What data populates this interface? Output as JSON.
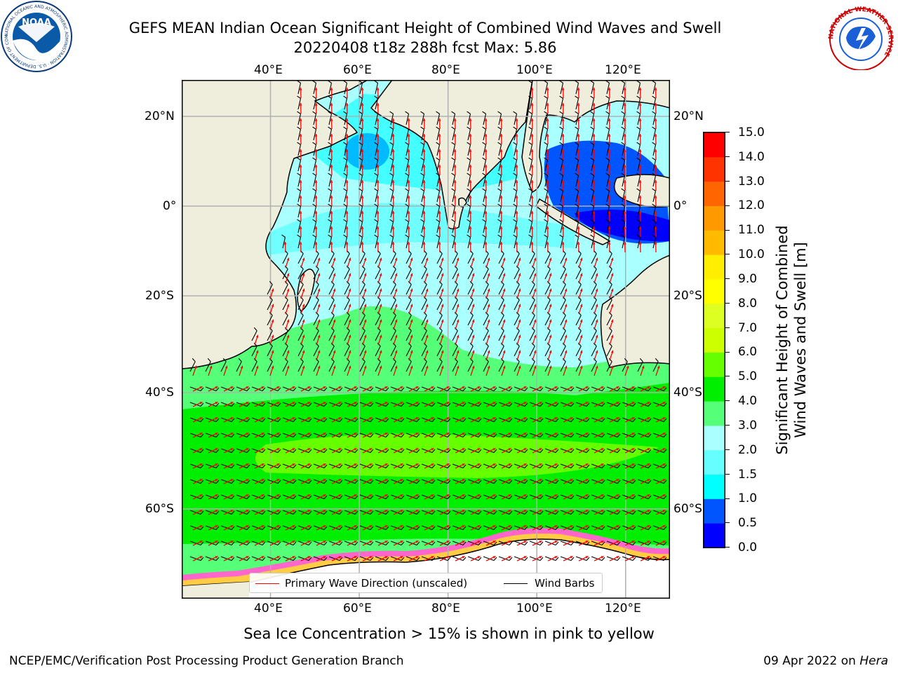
{
  "title": {
    "line1": "GEFS MEAN Indian Ocean Significant Height of Combined Wind Waves and Swell",
    "line2": "20220408 t18z 288h fcst   Max: 5.86"
  },
  "map": {
    "lon_labels": [
      "40°E",
      "60°E",
      "80°E",
      "100°E",
      "120°E"
    ],
    "lat_labels": [
      "20°N",
      "0°",
      "20°S",
      "40°S",
      "60°S"
    ],
    "lon_range": [
      20,
      130
    ],
    "lat_range": [
      -73,
      28
    ],
    "colors": {
      "land": "#efeddc",
      "ice_region": "#ffffff",
      "ice_edge": [
        "#ff66cc",
        "#ffcc44",
        "#ff8844"
      ],
      "wave_direction": "#ff0000",
      "wind_barb": "#000000",
      "gridline": "#b0b0b0"
    }
  },
  "legend": {
    "wave_direction_label": "Primary Wave Direction (unscaled)",
    "wind_barbs_label": "Wind Barbs"
  },
  "colorbar": {
    "label_line1": "Significant Height of Combined",
    "label_line2": "Wind Waves and Swell [m]",
    "levels": [
      {
        "from": 0.0,
        "to": 0.5,
        "color": "#0000ff"
      },
      {
        "from": 0.5,
        "to": 1.0,
        "color": "#0055ff"
      },
      {
        "from": 1.0,
        "to": 1.5,
        "color": "#00ffff"
      },
      {
        "from": 1.5,
        "to": 2.0,
        "color": "#66ffff"
      },
      {
        "from": 2.0,
        "to": 3.0,
        "color": "#aaffff"
      },
      {
        "from": 3.0,
        "to": 4.0,
        "color": "#55ff77"
      },
      {
        "from": 4.0,
        "to": 5.0,
        "color": "#00ee00"
      },
      {
        "from": 5.0,
        "to": 6.0,
        "color": "#66ff00"
      },
      {
        "from": 6.0,
        "to": 7.0,
        "color": "#ccff00"
      },
      {
        "from": 7.0,
        "to": 8.0,
        "color": "#ddff22"
      },
      {
        "from": 8.0,
        "to": 9.0,
        "color": "#ffff00"
      },
      {
        "from": 9.0,
        "to": 10.0,
        "color": "#ffee00"
      },
      {
        "from": 10.0,
        "to": 11.0,
        "color": "#ffbb00"
      },
      {
        "from": 11.0,
        "to": 12.0,
        "color": "#ff9900"
      },
      {
        "from": 12.0,
        "to": 13.0,
        "color": "#ff6600"
      },
      {
        "from": 13.0,
        "to": 14.0,
        "color": "#ff3300"
      },
      {
        "from": 14.0,
        "to": 15.0,
        "color": "#ff0000"
      }
    ],
    "tick_labels": [
      "0.0",
      "0.5",
      "1.0",
      "1.5",
      "2.0",
      "3.0",
      "4.0",
      "5.0",
      "6.0",
      "7.0",
      "8.0",
      "9.0",
      "10.0",
      "11.0",
      "12.0",
      "13.0",
      "14.0",
      "15.0"
    ]
  },
  "caption": "Sea Ice Concentration > 15% is shown in pink to yellow",
  "footer": {
    "left": "NCEP/EMC/Verification Post Processing Product Generation Branch",
    "date": "09 Apr 2022 on ",
    "host": "Hera"
  },
  "logos": {
    "noaa": {
      "text": "NOAA",
      "ring_text": "NATIONAL OCEANIC AND ATMOSPHERIC ADMINISTRATION · U.S. DEPARTMENT OF COMMERCE"
    },
    "nws": {
      "ring_text": "NATIONAL WEATHER SERVICE"
    }
  }
}
